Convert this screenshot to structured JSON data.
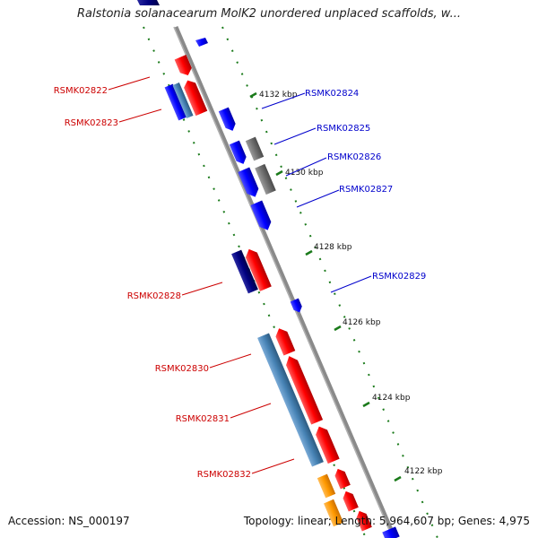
{
  "title": "Ralstonia solanacearum MolK2 unordered unplaced scaffolds, w...",
  "footer": {
    "accession": "Accession: NS_000197",
    "topology": "Topology: linear; Length: 5,964,607 bp; Genes: 4,975"
  },
  "scale_labels": [
    "4132 kbp",
    "4130 kbp",
    "4128 kbp",
    "4126 kbp",
    "4124 kbp",
    "4122 kbp"
  ],
  "colors": {
    "backbone": "#808080",
    "ticks": "#1a7a1a",
    "left_label": "#cc0000",
    "right_label": "#0000cc",
    "gene_red": "#ff0000",
    "gene_blue": "#0000ff",
    "gene_navy": "#000080",
    "gene_steel": "#4682b4",
    "gene_gray": "#707070",
    "gene_orange": "#ff9900"
  },
  "gene_labels_left": [
    "RSMK02822",
    "RSMK02823",
    "RSMK02828",
    "RSMK02830",
    "RSMK02831",
    "RSMK02832"
  ],
  "gene_labels_right": [
    "RSMK02824",
    "RSMK02825",
    "RSMK02826",
    "RSMK02827",
    "RSMK02829"
  ]
}
